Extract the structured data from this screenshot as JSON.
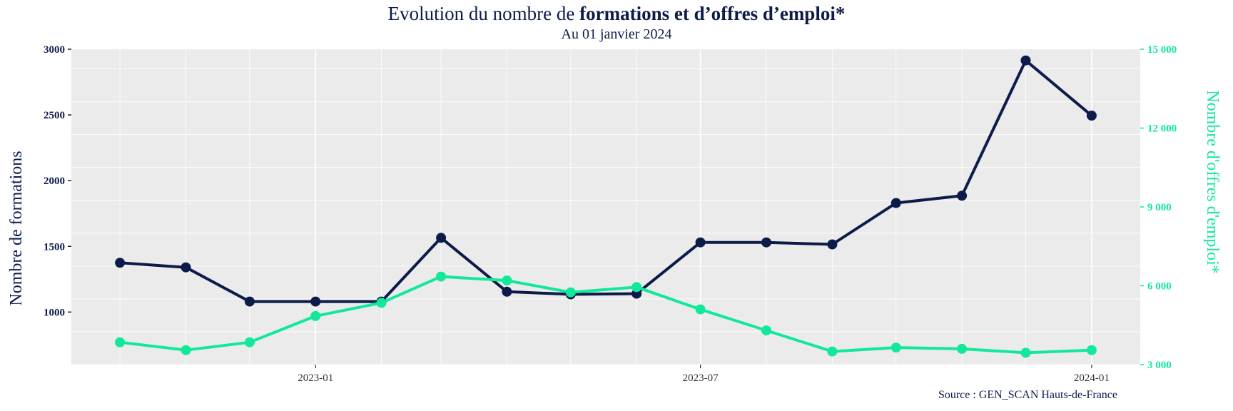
{
  "header": {
    "title_prefix": "Evolution du nombre de ",
    "title_bold": "formations et d’offres d’emploi*",
    "subtitle": "Au 01 janvier 2024"
  },
  "footer": {
    "source": "Source : GEN_SCAN Hauts-de-France"
  },
  "colors": {
    "formations": "#0d1b4b",
    "offres": "#12e89a",
    "panel": "#ebebeb",
    "grid": "#ffffff"
  },
  "chart_data": {
    "type": "line",
    "title": "Evolution du nombre de formations et d’offres d’emploi*",
    "subtitle": "Au 01 janvier 2024",
    "x": [
      "2022-10-01",
      "2022-11-01",
      "2022-12-01",
      "2023-01-01",
      "2023-02-01",
      "2023-03-01",
      "2023-04-01",
      "2023-05-01",
      "2023-06-01",
      "2023-07-01",
      "2023-08-01",
      "2023-09-01",
      "2023-10-01",
      "2023-11-01",
      "2023-12-01",
      "2024-01-01"
    ],
    "xticks": [
      "2023-01",
      "2023-07",
      "2024-01"
    ],
    "ylabel": "Nombre de formations",
    "ylabel_right": "Nombre d'offres d'emploi*",
    "ylim": [
      600,
      3000
    ],
    "ylim_right": [
      3000,
      15000
    ],
    "yticks": [
      "3000",
      "2500",
      "2000",
      "1500",
      "1000"
    ],
    "yticks_right": [
      "15 000",
      "12 000",
      "9 000",
      "6 000",
      "3 000"
    ],
    "grid": true,
    "series": [
      {
        "name": "formations",
        "axis": "left",
        "values": [
          1375,
          1340,
          1080,
          1080,
          1080,
          1565,
          1155,
          1135,
          1140,
          1530,
          1530,
          1515,
          1830,
          1885,
          2915,
          2495
        ]
      },
      {
        "name": "offres",
        "axis": "right",
        "values": [
          3850,
          3550,
          3850,
          4850,
          5350,
          6350,
          6200,
          5750,
          5950,
          5100,
          4300,
          3500,
          3650,
          3600,
          3450,
          3550
        ]
      }
    ]
  }
}
